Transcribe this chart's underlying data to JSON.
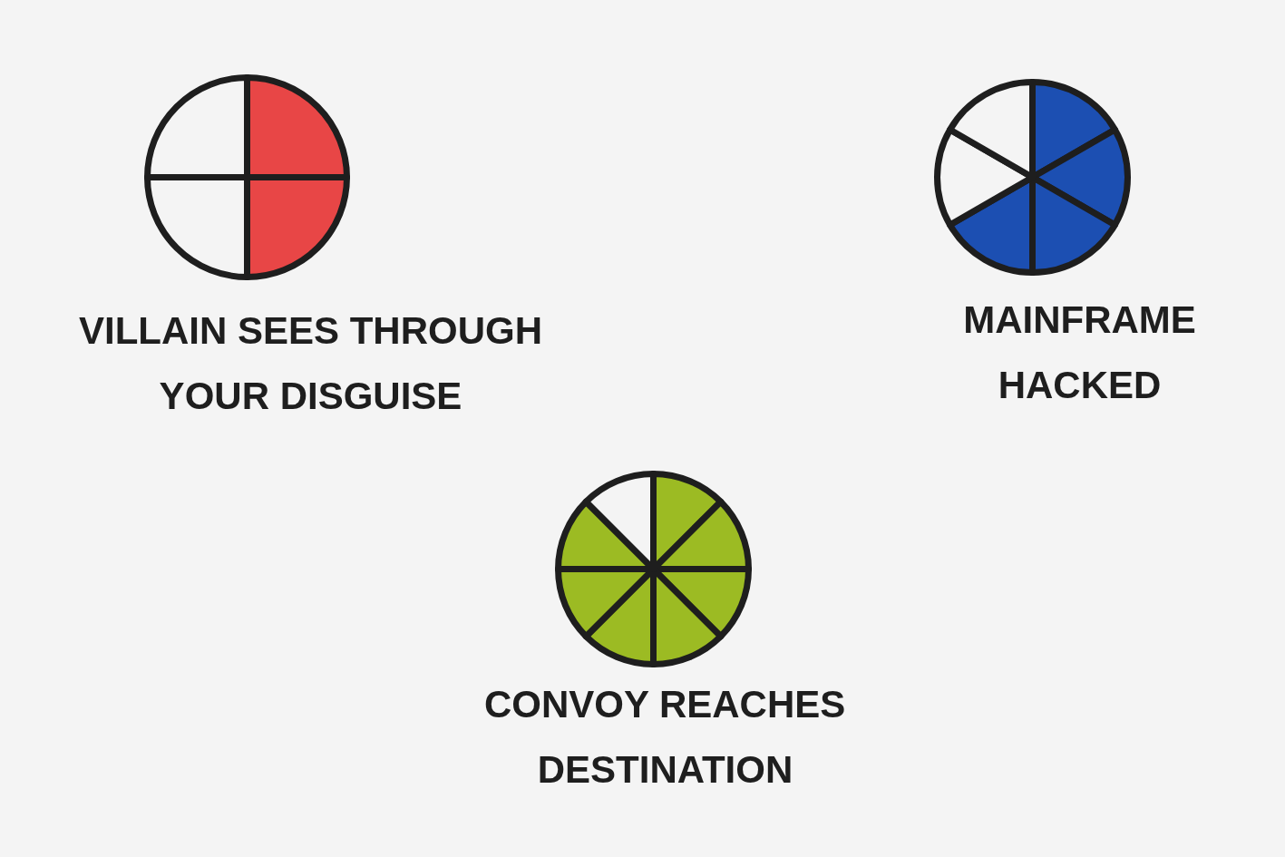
{
  "chart_data": [
    {
      "type": "pie",
      "title": "VILLAIN SEES THROUGH YOUR DISGUISE",
      "categories": [
        null,
        null,
        null,
        null
      ],
      "values": [
        25,
        25,
        25,
        25
      ],
      "colors": [
        "#e84646",
        "#e84646",
        "#f4f4f4",
        "#f4f4f4"
      ]
    },
    {
      "type": "pie",
      "title": "MAINFRAME HACKED",
      "categories": [
        null,
        null,
        null,
        null,
        null,
        null
      ],
      "values": [
        16.67,
        16.67,
        16.66,
        16.67,
        16.67,
        16.66
      ],
      "colors": [
        "#1c4fb2",
        "#1c4fb2",
        "#1c4fb2",
        "#1c4fb2",
        "#f4f4f4",
        "#f4f4f4"
      ]
    },
    {
      "type": "pie",
      "title": "CONVOY REACHES DESTINATION",
      "categories": [
        null,
        null,
        null,
        null,
        null,
        null,
        null,
        null
      ],
      "values": [
        12.5,
        12.5,
        12.5,
        12.5,
        12.5,
        12.5,
        12.5,
        12.5
      ],
      "colors": [
        "#9cbb23",
        "#9cbb23",
        "#9cbb23",
        "#9cbb23",
        "#9cbb23",
        "#9cbb23",
        "#9cbb23",
        "#f4f4f4"
      ]
    }
  ]
}
